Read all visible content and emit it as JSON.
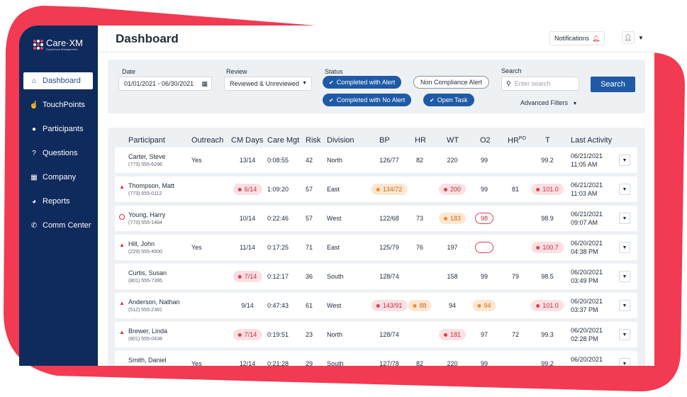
{
  "brand": {
    "name": "Care·XM",
    "tagline": "Experience Management"
  },
  "sidebar": {
    "items": [
      {
        "label": "Dashboard",
        "icon": "home-icon",
        "glyph": "⌂",
        "active": true
      },
      {
        "label": "TouchPoints",
        "icon": "hand-pointer-icon",
        "glyph": "☝",
        "active": false
      },
      {
        "label": "Participants",
        "icon": "person-icon",
        "glyph": "●",
        "active": false
      },
      {
        "label": "Questions",
        "icon": "question-circle-icon",
        "glyph": "?",
        "active": false
      },
      {
        "label": "Company",
        "icon": "building-icon",
        "glyph": "▦",
        "active": false
      },
      {
        "label": "Reports",
        "icon": "pie-chart-icon",
        "glyph": "◕",
        "active": false
      },
      {
        "label": "Comm Center",
        "icon": "phone-icon",
        "glyph": "✆",
        "active": false
      }
    ]
  },
  "header": {
    "title": "Dashboard",
    "notifications_label": "Notifications",
    "notification_icon": "bell-alert-icon",
    "user_icon": "user-icon"
  },
  "filters": {
    "date_label": "Date",
    "date_value": "01/01/2021 - 06/30/2021",
    "review_label": "Review",
    "review_value": "Reviewed & Unreviewed",
    "status_label": "Status",
    "status_chips": [
      {
        "label": "Completed with Alert",
        "selected": true
      },
      {
        "label": "Non Compliance Alert",
        "selected": false
      },
      {
        "label": "Completed with No Alert",
        "selected": true
      },
      {
        "label": "Open Task",
        "selected": true
      }
    ],
    "search_label": "Search",
    "search_placeholder": "Enter search",
    "search_button": "Search",
    "advanced_label": "Advanced Filters"
  },
  "table": {
    "columns": {
      "participant": "Participant",
      "outreach": "Outreach",
      "cm_days": "CM Days",
      "care_mgt": "Care Mgt",
      "risk": "Risk",
      "division": "Division",
      "bp": "BP",
      "hr": "HR",
      "wt": "WT",
      "o2": "O2",
      "hrpo": "HR",
      "hrpo_sup": "PO",
      "t": "T",
      "last_activity": "Last Activity"
    },
    "rows": [
      {
        "flag": "",
        "name": "Carter, Steve",
        "phone": "(773) 555-6296",
        "outreach": "Yes",
        "cm_days": {
          "v": "13/14",
          "s": ""
        },
        "care_mgt": "0:08:55",
        "risk": "42",
        "division": "North",
        "bp": {
          "v": "126/77",
          "s": ""
        },
        "hr": {
          "v": "82",
          "s": ""
        },
        "wt": {
          "v": "220",
          "s": ""
        },
        "o2": {
          "v": "99",
          "s": ""
        },
        "hrpo": {
          "v": "",
          "s": ""
        },
        "t": {
          "v": "99.2",
          "s": ""
        },
        "date": "06/21/2021",
        "time": "11:05 AM"
      },
      {
        "flag": "alert",
        "name": "Thompson, Matt",
        "phone": "(773) 555-0112",
        "outreach": "",
        "cm_days": {
          "v": "6/14",
          "s": "red"
        },
        "care_mgt": "1:09:20",
        "risk": "57",
        "division": "East",
        "bp": {
          "v": "134/72",
          "s": "orange"
        },
        "hr": {
          "v": "",
          "s": ""
        },
        "wt": {
          "v": "200",
          "s": "red"
        },
        "o2": {
          "v": "99",
          "s": ""
        },
        "hrpo": {
          "v": "81",
          "s": ""
        },
        "t": {
          "v": "101.0",
          "s": "red"
        },
        "date": "06/21/2021",
        "time": "11:03 AM"
      },
      {
        "flag": "ring",
        "name": "Young, Harry",
        "phone": "(773) 555-1484",
        "outreach": "",
        "cm_days": {
          "v": "10/14",
          "s": ""
        },
        "care_mgt": "0:22:46",
        "risk": "57",
        "division": "West",
        "bp": {
          "v": "122/68",
          "s": ""
        },
        "hr": {
          "v": "73",
          "s": ""
        },
        "wt": {
          "v": "183",
          "s": "orange"
        },
        "o2": {
          "v": "98",
          "s": "outline"
        },
        "hrpo": {
          "v": "",
          "s": ""
        },
        "t": {
          "v": "98.9",
          "s": ""
        },
        "date": "06/21/2021",
        "time": "09:07 AM"
      },
      {
        "flag": "alert",
        "name": "Hill, John",
        "phone": "(229) 555-4500",
        "outreach": "Yes",
        "cm_days": {
          "v": "11/14",
          "s": ""
        },
        "care_mgt": "0:17:25",
        "risk": "71",
        "division": "East",
        "bp": {
          "v": "125/79",
          "s": ""
        },
        "hr": {
          "v": "76",
          "s": ""
        },
        "wt": {
          "v": "197",
          "s": ""
        },
        "o2": {
          "v": "",
          "s": "outline"
        },
        "hrpo": {
          "v": "",
          "s": ""
        },
        "t": {
          "v": "100.7",
          "s": "red"
        },
        "date": "06/20/2021",
        "time": "04:38 PM"
      },
      {
        "flag": "",
        "name": "Curtis, Susan",
        "phone": "(801) 555-7395",
        "outreach": "",
        "cm_days": {
          "v": "7/14",
          "s": "red"
        },
        "care_mgt": "0:12:17",
        "risk": "36",
        "division": "South",
        "bp": {
          "v": "128/74",
          "s": ""
        },
        "hr": {
          "v": "",
          "s": ""
        },
        "wt": {
          "v": "158",
          "s": ""
        },
        "o2": {
          "v": "99",
          "s": ""
        },
        "hrpo": {
          "v": "79",
          "s": ""
        },
        "t": {
          "v": "98.5",
          "s": ""
        },
        "date": "06/20/2021",
        "time": "03:49 PM"
      },
      {
        "flag": "alert",
        "name": "Anderson, Nathan",
        "phone": "(512) 555-2381",
        "outreach": "",
        "cm_days": {
          "v": "9/14",
          "s": ""
        },
        "care_mgt": "0:47:43",
        "risk": "61",
        "division": "West",
        "bp": {
          "v": "143/91",
          "s": "red"
        },
        "hr": {
          "v": "88",
          "s": "orange"
        },
        "wt": {
          "v": "94",
          "s": ""
        },
        "o2": {
          "v": "94",
          "s": "orange"
        },
        "hrpo": {
          "v": "",
          "s": ""
        },
        "t": {
          "v": "101.0",
          "s": "red"
        },
        "date": "06/20/2021",
        "time": "03:37 PM"
      },
      {
        "flag": "alert",
        "name": "Brewer, Linda",
        "phone": "(801) 555-0438",
        "outreach": "",
        "cm_days": {
          "v": "7/14",
          "s": "red"
        },
        "care_mgt": "0:19:51",
        "risk": "23",
        "division": "North",
        "bp": {
          "v": "128/74",
          "s": ""
        },
        "hr": {
          "v": "",
          "s": ""
        },
        "wt": {
          "v": "181",
          "s": "red"
        },
        "o2": {
          "v": "97",
          "s": ""
        },
        "hrpo": {
          "v": "72",
          "s": ""
        },
        "t": {
          "v": "99.3",
          "s": ""
        },
        "date": "06/20/2021",
        "time": "02:28 PM"
      },
      {
        "flag": "",
        "name": "Smith, Daniel",
        "phone": "",
        "outreach": "Yes",
        "cm_days": {
          "v": "12/14",
          "s": ""
        },
        "care_mgt": "0:21:28",
        "risk": "29",
        "division": "South",
        "bp": {
          "v": "127/78",
          "s": ""
        },
        "hr": {
          "v": "82",
          "s": ""
        },
        "wt": {
          "v": "220",
          "s": ""
        },
        "o2": {
          "v": "99",
          "s": ""
        },
        "hrpo": {
          "v": "",
          "s": ""
        },
        "t": {
          "v": "99.2",
          "s": ""
        },
        "date": "06/20/2021",
        "time": ""
      }
    ]
  },
  "colors": {
    "sidebar": "#0f2a5c",
    "accent": "#1f5aa6",
    "brand_red": "#e8455f",
    "alert_red": "#d7293f",
    "warn_orange": "#ef8a2b"
  }
}
